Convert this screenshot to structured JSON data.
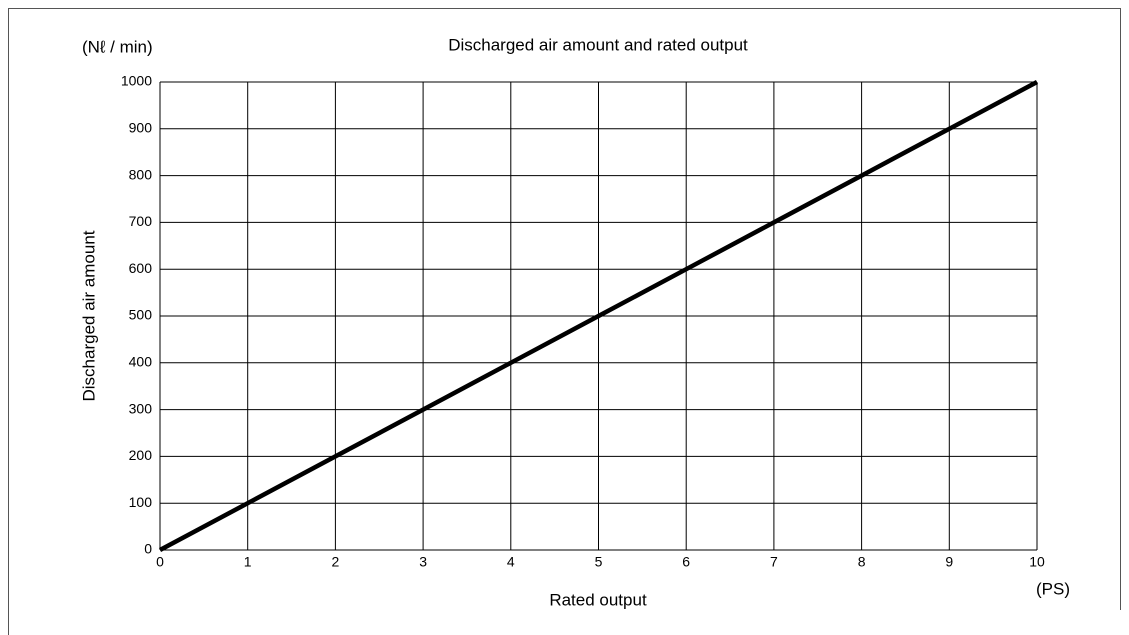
{
  "chart_data": {
    "type": "line",
    "title": "Discharged air amount and rated output",
    "y_unit": "(Nℓ / min)",
    "y_label": "Discharged air amount",
    "x_label": "Rated output",
    "x_unit": "(PS)",
    "x": [
      0,
      1,
      2,
      3,
      4,
      5,
      6,
      7,
      8,
      9,
      10
    ],
    "series": [
      {
        "name": "Discharged air amount",
        "color": "#000000",
        "values": [
          0,
          100,
          200,
          300,
          400,
          500,
          600,
          700,
          800,
          900,
          1000
        ]
      }
    ],
    "xlim": [
      0,
      10
    ],
    "xticks": [
      0,
      1,
      2,
      3,
      4,
      5,
      6,
      7,
      8,
      9,
      10
    ],
    "ylim": [
      0,
      1000
    ],
    "yticks": [
      0,
      100,
      200,
      300,
      400,
      500,
      600,
      700,
      800,
      900,
      1000
    ],
    "grid": true
  }
}
